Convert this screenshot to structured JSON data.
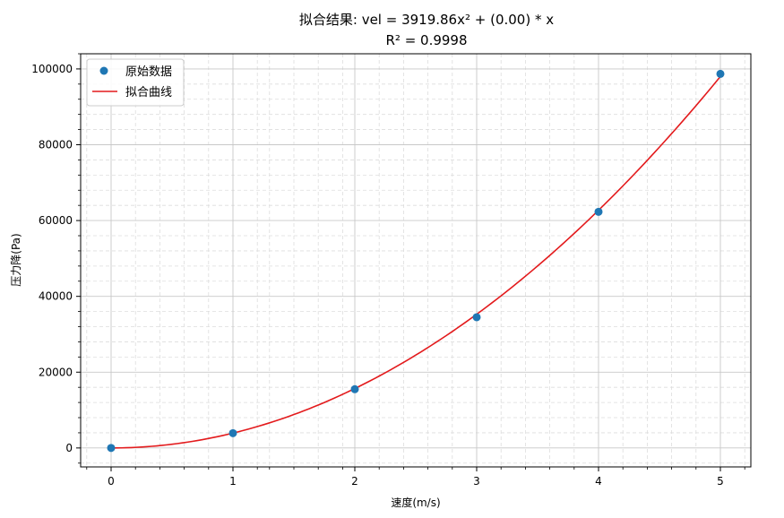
{
  "chart_data": {
    "type": "scatter",
    "title": "拟合结果: vel = 3919.86x² + (0.00) * x",
    "subtitle": "R² = 0.9998",
    "xlabel": "速度(m/s)",
    "ylabel": "压力降(Pa)",
    "xlim": [
      -0.25,
      5.25
    ],
    "ylim": [
      -5000,
      104000
    ],
    "xticks": [
      "0",
      "1",
      "2",
      "3",
      "4",
      "5"
    ],
    "yticks": [
      "0",
      "20000",
      "40000",
      "60000",
      "80000",
      "100000"
    ],
    "grid": "major-solid-minor-dashed",
    "legend_position": "top-left",
    "series": [
      {
        "name": "原始数据",
        "kind": "scatter",
        "color": "#1f77b4",
        "x": [
          0,
          1,
          2,
          3,
          4,
          5
        ],
        "y": [
          0,
          3900,
          15500,
          34500,
          62300,
          98700
        ]
      },
      {
        "name": "拟合曲线",
        "kind": "line",
        "color": "#e31a1c",
        "formula": {
          "a": 3919.86,
          "b": 0.0
        },
        "x_range": [
          0,
          5
        ]
      }
    ]
  }
}
